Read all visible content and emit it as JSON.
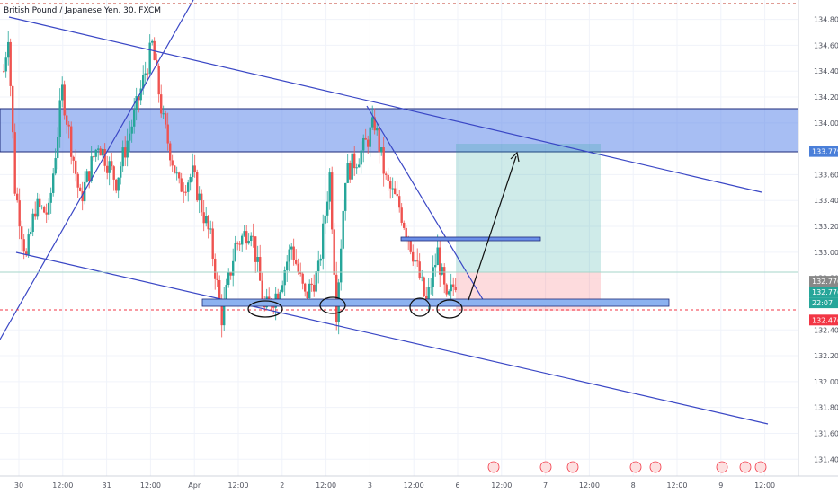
{
  "chart_data": {
    "type": "candlestick",
    "title": "British Pound / Japanese Yen, 30, FXCM",
    "ylim": [
      131.27,
      134.95
    ],
    "y_ticks": [
      {
        "value": 134.8,
        "label": "134.800"
      },
      {
        "value": 134.6,
        "label": "134.600"
      },
      {
        "value": 134.4,
        "label": "134.400"
      },
      {
        "value": 134.2,
        "label": "134.200"
      },
      {
        "value": 134.0,
        "label": "134.000"
      },
      {
        "value": 133.6,
        "label": "133.600"
      },
      {
        "value": 133.4,
        "label": "133.400"
      },
      {
        "value": 133.2,
        "label": "133.200"
      },
      {
        "value": 133.0,
        "label": "133.000"
      },
      {
        "value": 132.8,
        "label": "132.800"
      },
      {
        "value": 132.4,
        "label": "132.400"
      },
      {
        "value": 132.2,
        "label": "132.200"
      },
      {
        "value": 132.0,
        "label": "132.000"
      },
      {
        "value": 131.8,
        "label": "131.800"
      },
      {
        "value": 131.6,
        "label": "131.600"
      },
      {
        "value": 131.4,
        "label": "131.400"
      }
    ],
    "x_ticks": [
      "30",
      "12:00",
      "31",
      "12:00",
      "Apr",
      "12:00",
      "2",
      "12:00",
      "3",
      "12:00",
      "6",
      "12:00",
      "7",
      "12:00",
      "8",
      "12:00",
      "9",
      "12:00"
    ],
    "price_badges": [
      {
        "value": 133.779,
        "label": "133.779",
        "color": "#4a7fd9"
      },
      {
        "value": 132.776,
        "label": "132.776",
        "color": "#888888"
      },
      {
        "value": 132.776,
        "label": "132.776",
        "color": "#26a69a"
      },
      {
        "value": 132.62,
        "label": "22:07",
        "color": "#26a69a"
      },
      {
        "value": 132.476,
        "label": "132.476",
        "color": "#f23645"
      }
    ],
    "anchors": [
      {
        "i": 0,
        "p": 134.4
      },
      {
        "i": 2,
        "p": 134.7
      },
      {
        "i": 5,
        "p": 133.5
      },
      {
        "i": 10,
        "p": 132.95
      },
      {
        "i": 14,
        "p": 133.35
      },
      {
        "i": 20,
        "p": 133.3
      },
      {
        "i": 26,
        "p": 134.25
      },
      {
        "i": 34,
        "p": 133.4
      },
      {
        "i": 42,
        "p": 133.85
      },
      {
        "i": 50,
        "p": 133.55
      },
      {
        "i": 58,
        "p": 134.05
      },
      {
        "i": 66,
        "p": 134.6
      },
      {
        "i": 71,
        "p": 134.0
      },
      {
        "i": 78,
        "p": 133.5
      },
      {
        "i": 84,
        "p": 133.6
      },
      {
        "i": 92,
        "p": 133.1
      },
      {
        "i": 97,
        "p": 132.5
      },
      {
        "i": 103,
        "p": 133.05
      },
      {
        "i": 110,
        "p": 133.2
      },
      {
        "i": 116,
        "p": 132.55
      },
      {
        "i": 122,
        "p": 132.7
      },
      {
        "i": 128,
        "p": 133.05
      },
      {
        "i": 134,
        "p": 132.65
      },
      {
        "i": 140,
        "p": 132.85
      },
      {
        "i": 145,
        "p": 133.6
      },
      {
        "i": 148,
        "p": 132.55
      },
      {
        "i": 152,
        "p": 133.6
      },
      {
        "i": 160,
        "p": 133.8
      },
      {
        "i": 165,
        "p": 134.0
      },
      {
        "i": 170,
        "p": 133.55
      },
      {
        "i": 176,
        "p": 133.35
      },
      {
        "i": 182,
        "p": 133.0
      },
      {
        "i": 188,
        "p": 132.6
      },
      {
        "i": 193,
        "p": 133.0
      },
      {
        "i": 197,
        "p": 132.6
      },
      {
        "i": 201,
        "p": 132.78
      }
    ],
    "seed": 7
  }
}
